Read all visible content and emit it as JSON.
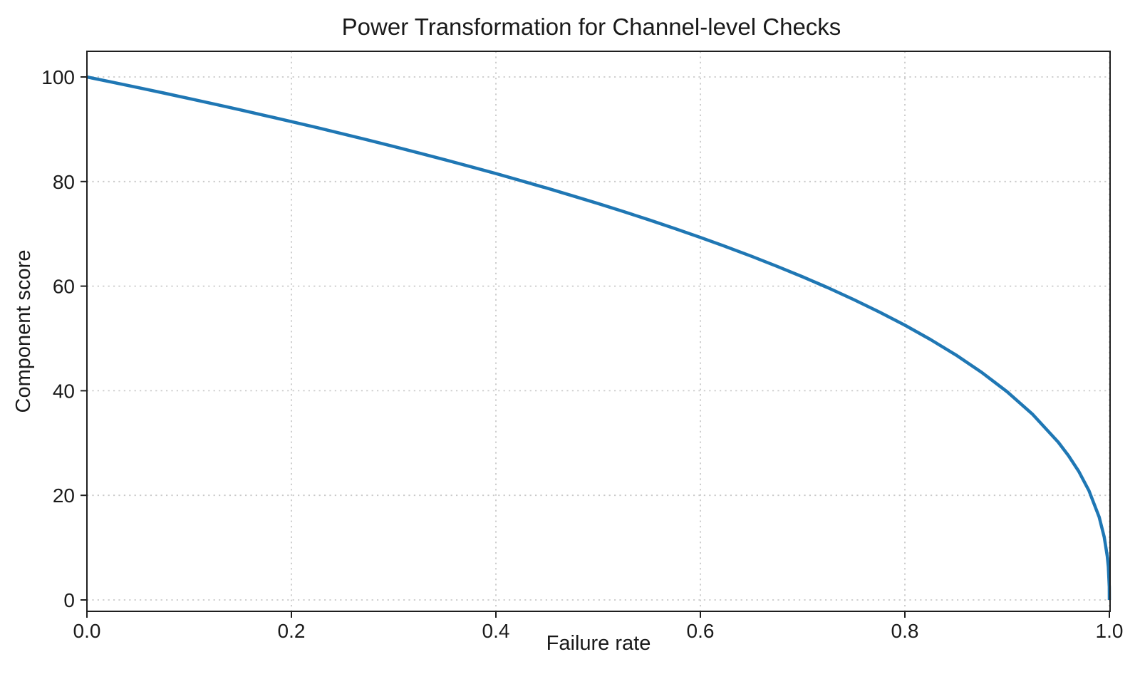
{
  "chart_data": {
    "type": "line",
    "title": "Power Transformation for Channel-level Checks",
    "xlabel": "Failure rate",
    "ylabel": "Component score",
    "xlim": [
      0,
      1
    ],
    "ylim": [
      0,
      100
    ],
    "grid": {
      "visible": true,
      "style": "dotted",
      "color": "#c9c9c9"
    },
    "legend": null,
    "xticks": {
      "values": [
        0,
        0.2,
        0.4,
        0.6,
        0.8,
        1.0
      ],
      "labels": [
        "0.0",
        "0.2",
        "0.4",
        "0.6",
        "0.8",
        "1.0"
      ]
    },
    "yticks": {
      "values": [
        0,
        20,
        40,
        60,
        80,
        100
      ],
      "labels": [
        "0",
        "20",
        "40",
        "60",
        "80",
        "100"
      ]
    },
    "line_color": "#1f77b4",
    "line_width": 4.5,
    "series": [
      {
        "name": "component-score-curve",
        "x": [
          0,
          0.025,
          0.05,
          0.075,
          0.1,
          0.125,
          0.15,
          0.175,
          0.2,
          0.225,
          0.25,
          0.275,
          0.3,
          0.325,
          0.35,
          0.375,
          0.4,
          0.425,
          0.45,
          0.475,
          0.5,
          0.525,
          0.55,
          0.575,
          0.6,
          0.625,
          0.65,
          0.675,
          0.7,
          0.725,
          0.75,
          0.775,
          0.8,
          0.825,
          0.85,
          0.875,
          0.9,
          0.925,
          0.95,
          0.96,
          0.97,
          0.98,
          0.99,
          0.995,
          0.998,
          0.999,
          0.9999,
          1.0
        ],
        "y": [
          100,
          98.99,
          97.97,
          96.93,
          95.87,
          94.8,
          93.71,
          92.59,
          91.46,
          90.31,
          89.13,
          87.93,
          86.7,
          85.45,
          84.17,
          82.86,
          81.52,
          80.14,
          78.73,
          77.28,
          75.79,
          74.25,
          72.66,
          71.02,
          69.31,
          67.55,
          65.71,
          63.79,
          61.78,
          59.67,
          57.43,
          55.06,
          52.53,
          49.8,
          46.82,
          43.53,
          39.81,
          35.48,
          30.17,
          27.59,
          24.59,
          20.91,
          15.85,
          12.01,
          8.33,
          6.31,
          2.51,
          0
        ]
      }
    ]
  },
  "style": {
    "spine_color": "#1f1f1f",
    "tick_color": "#1f1f1f",
    "text_color": "#1a1a1a",
    "background": "#ffffff"
  }
}
